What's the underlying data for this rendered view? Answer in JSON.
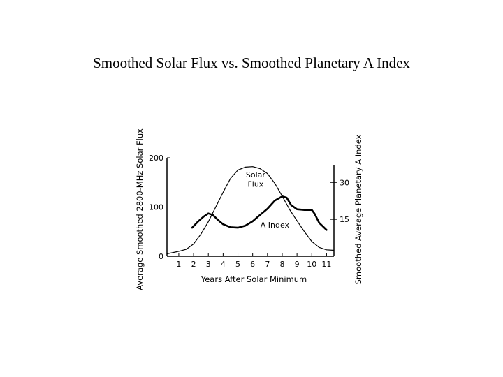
{
  "title": "Smoothed Solar Flux vs. Smoothed Planetary A Index",
  "chart_data": {
    "type": "line",
    "title": "Smoothed Solar Flux vs. Smoothed Planetary A Index",
    "xlabel": "Years After Solar Minimum",
    "ylabel_left": "Average Smoothed 2800-MHz Solar Flux",
    "ylabel_right": "Smoothed Average Planetary A Index",
    "xlim": [
      0.2,
      11.5
    ],
    "ylim_left": [
      0,
      200
    ],
    "ylim_right": [
      0,
      40
    ],
    "x_ticks": [
      1,
      2,
      3,
      4,
      5,
      6,
      7,
      8,
      9,
      10,
      11
    ],
    "y_ticks_left": [
      0,
      100,
      200
    ],
    "y_ticks_right": [
      15,
      30
    ],
    "grid": false,
    "legend": "none",
    "series": [
      {
        "name": "Solar Flux",
        "axis": "left",
        "line_style": "thin",
        "x": [
          0.2,
          1,
          1.5,
          2,
          2.5,
          3,
          3.5,
          4,
          4.5,
          5,
          5.5,
          6,
          6.5,
          7,
          7.5,
          8,
          8.5,
          9,
          9.5,
          10,
          10.5,
          11,
          11.5
        ],
        "y": [
          5,
          10,
          14,
          25,
          45,
          70,
          100,
          130,
          158,
          175,
          181,
          182,
          178,
          168,
          148,
          122,
          95,
          72,
          50,
          30,
          18,
          13,
          12
        ]
      },
      {
        "name": "A Index",
        "axis": "right",
        "line_style": "thick",
        "x": [
          1.9,
          2.3,
          2.7,
          3,
          3.3,
          3.7,
          4,
          4.5,
          5,
          5.5,
          6,
          6.5,
          7,
          7.5,
          8,
          8.3,
          8.6,
          9,
          9.5,
          10,
          10.2,
          10.5,
          11
        ],
        "y": [
          11.6,
          14.1,
          16.2,
          17.4,
          16.8,
          14.5,
          13.0,
          11.8,
          11.6,
          12.4,
          14.2,
          16.8,
          19.3,
          22.6,
          24.3,
          23.8,
          20.8,
          19.1,
          18.8,
          18.8,
          17.2,
          13.6,
          10.7
        ]
      }
    ],
    "annotations": [
      {
        "text": "Solar",
        "x": 6.2,
        "y": 160
      },
      {
        "text": "Flux",
        "x": 6.2,
        "y": 141
      },
      {
        "text": "A Index",
        "x": 7.5,
        "y": 58
      }
    ]
  }
}
